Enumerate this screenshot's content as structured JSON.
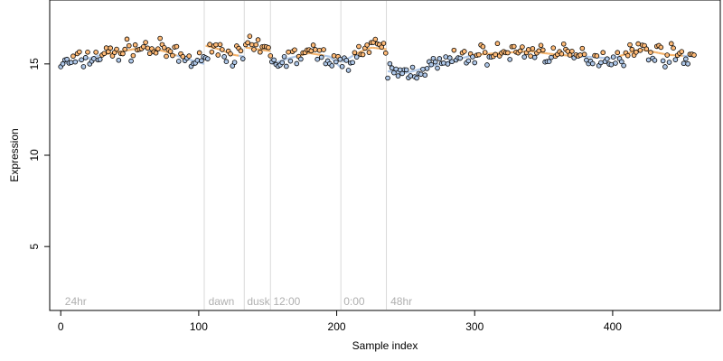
{
  "chart_data": {
    "type": "scatter",
    "xlabel": "Sample index",
    "ylabel": "Expression",
    "xlim": [
      -8,
      478
    ],
    "ylim": [
      1.5,
      18.5
    ],
    "x_ticks": [
      0,
      100,
      200,
      300,
      400
    ],
    "y_ticks": [
      5,
      10,
      15
    ],
    "grid": false,
    "legend": "none",
    "colors": {
      "point_fill_light": "#aec7e8",
      "point_fill_dark": "#ffbb78",
      "point_stroke": "#000000",
      "trend_blue": "#aec7e8",
      "trend_orange": "#f4b26a",
      "divider": "#d9d9d9",
      "annotation": "#b0b0b0"
    },
    "dividers": [
      104,
      133,
      152,
      203,
      236
    ],
    "annotations": [
      {
        "x": 3,
        "text": "24hr"
      },
      {
        "x": 107,
        "text": "dawn"
      },
      {
        "x": 135,
        "text": "dusk"
      },
      {
        "x": 154,
        "text": "12:00"
      },
      {
        "x": 205,
        "text": "0:00"
      },
      {
        "x": 239,
        "text": "48hr"
      }
    ],
    "segments": [
      {
        "x0": 0,
        "x1": 104,
        "levels": [
          [
            0,
            15.0
          ],
          [
            15,
            15.2
          ],
          [
            30,
            15.5
          ],
          [
            45,
            15.7
          ],
          [
            60,
            15.9
          ],
          [
            75,
            15.7
          ],
          [
            90,
            15.3
          ],
          [
            104,
            15.0
          ]
        ]
      },
      {
        "x0": 105,
        "x1": 133,
        "levels": [
          [
            105,
            16.0
          ],
          [
            115,
            15.8
          ],
          [
            125,
            15.5
          ],
          [
            133,
            15.4
          ]
        ]
      },
      {
        "x0": 134,
        "x1": 152,
        "levels": [
          [
            134,
            15.9
          ],
          [
            143,
            15.8
          ],
          [
            152,
            15.7
          ]
        ]
      },
      {
        "x0": 153,
        "x1": 203,
        "levels": [
          [
            153,
            15.0
          ],
          [
            165,
            15.3
          ],
          [
            180,
            15.6
          ],
          [
            195,
            15.4
          ],
          [
            203,
            14.8
          ]
        ]
      },
      {
        "x0": 204,
        "x1": 236,
        "levels": [
          [
            204,
            15.1
          ],
          [
            215,
            15.6
          ],
          [
            225,
            15.9
          ],
          [
            236,
            15.8
          ]
        ]
      },
      {
        "x0": 237,
        "x1": 460,
        "levels": [
          [
            237,
            14.6
          ],
          [
            250,
            14.5
          ],
          [
            265,
            14.8
          ],
          [
            280,
            15.1
          ],
          [
            300,
            15.5
          ],
          [
            320,
            15.6
          ],
          [
            340,
            15.7
          ],
          [
            360,
            15.5
          ],
          [
            380,
            15.4
          ],
          [
            400,
            15.3
          ],
          [
            420,
            15.8
          ],
          [
            440,
            15.5
          ],
          [
            460,
            15.4
          ]
        ]
      }
    ],
    "noise": 0.38,
    "point_step": 1.5
  }
}
